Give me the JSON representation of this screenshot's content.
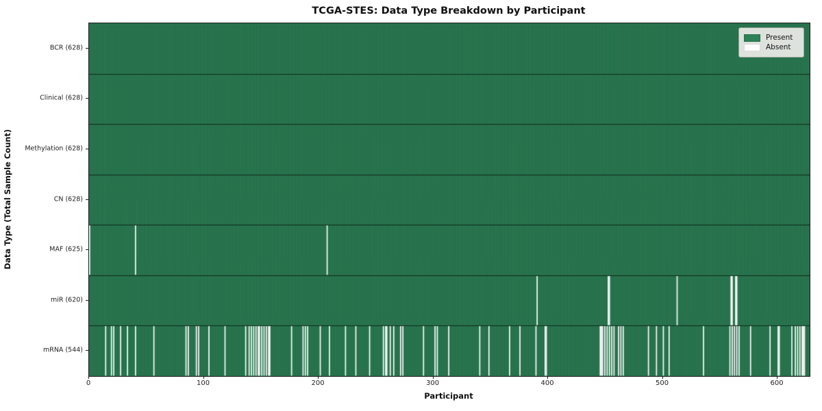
{
  "chart_data": {
    "type": "heatmap",
    "title": "TCGA-STES: Data Type Breakdown by Participant",
    "xlabel": "Participant",
    "ylabel": "Data Type (Total Sample Count)",
    "n_participants": 628,
    "x_ticks": [
      0,
      100,
      200,
      300,
      400,
      500,
      600
    ],
    "xlim": [
      0,
      628
    ],
    "grid": false,
    "legend_position": "upper right",
    "colors": {
      "present": "#2e8157",
      "absent": "#ffffff",
      "edge": "#0e3521",
      "separator": "#10281a"
    },
    "legend": [
      {
        "label": "Present",
        "color": "#2e8157"
      },
      {
        "label": "Absent",
        "color": "#ffffff"
      }
    ],
    "rows": [
      {
        "label": "BCR (628)",
        "name": "BCR",
        "total": 628,
        "absent": []
      },
      {
        "label": "Clinical (628)",
        "name": "Clinical",
        "total": 628,
        "absent": []
      },
      {
        "label": "Methylation (628)",
        "name": "Methylation",
        "total": 628,
        "absent": []
      },
      {
        "label": "CN (628)",
        "name": "CN",
        "total": 628,
        "absent": []
      },
      {
        "label": "MAF (625)",
        "name": "MAF",
        "total": 625,
        "absent": [
          0,
          40,
          207
        ]
      },
      {
        "label": "miR (620)",
        "name": "miR",
        "total": 620,
        "absent": [
          390,
          452,
          453,
          512,
          559,
          560,
          563,
          564
        ]
      },
      {
        "label": "mRNA (544)",
        "name": "mRNA",
        "total": 544,
        "absent": [
          14,
          19,
          21,
          27,
          33,
          40,
          56,
          84,
          86,
          93,
          95,
          104,
          118,
          136,
          139,
          141,
          143,
          145,
          147,
          148,
          150,
          152,
          154,
          156,
          157,
          176,
          186,
          188,
          190,
          201,
          209,
          223,
          232,
          244,
          256,
          258,
          259,
          262,
          265,
          271,
          273,
          291,
          301,
          303,
          313,
          340,
          348,
          366,
          375,
          389,
          397,
          398,
          445,
          446,
          447,
          449,
          451,
          453,
          455,
          457,
          461,
          463,
          465,
          487,
          494,
          500,
          505,
          535,
          558,
          560,
          562,
          564,
          566,
          576,
          593,
          600,
          601,
          612,
          615,
          617,
          619,
          621,
          622,
          623
        ]
      }
    ]
  }
}
